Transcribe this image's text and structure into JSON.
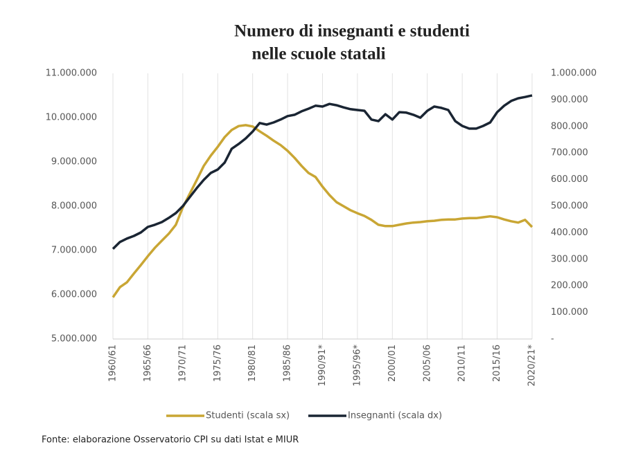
{
  "chart_data": {
    "type": "line",
    "title": [
      "Numero di insegnanti e studenti",
      "nelle scuole statali"
    ],
    "source": "Fonte: elaborazione Osservatorio CPI su dati Istat e MIUR",
    "categories": [
      "1960/61",
      null,
      null,
      null,
      null,
      "1965/66",
      null,
      null,
      null,
      null,
      "1970/71",
      null,
      null,
      null,
      null,
      "1975/76",
      null,
      null,
      null,
      null,
      "1980/81",
      null,
      null,
      null,
      null,
      "1985/86",
      null,
      null,
      null,
      null,
      "1990/91*",
      null,
      null,
      null,
      null,
      "1995/96*",
      null,
      null,
      null,
      null,
      "2000/01",
      null,
      null,
      null,
      null,
      "2005/06",
      null,
      null,
      null,
      null,
      "2010/11",
      null,
      null,
      null,
      null,
      "2015/16",
      null,
      null,
      null,
      null,
      "2020/21*"
    ],
    "series": [
      {
        "name": "Studenti (scala sx)",
        "color": "#c9a634",
        "axis": "y",
        "values": [
          5940000,
          6170000,
          6280000,
          6480000,
          6670000,
          6870000,
          7060000,
          7220000,
          7380000,
          7580000,
          7970000,
          8280000,
          8590000,
          8910000,
          9140000,
          9340000,
          9560000,
          9720000,
          9810000,
          9830000,
          9800000,
          9690000,
          9590000,
          9480000,
          9380000,
          9250000,
          9090000,
          8910000,
          8750000,
          8660000,
          8440000,
          8250000,
          8090000,
          8000000,
          7910000,
          7840000,
          7780000,
          7690000,
          7580000,
          7550000,
          7550000,
          7580000,
          7610000,
          7630000,
          7640000,
          7660000,
          7670000,
          7690000,
          7700000,
          7700000,
          7720000,
          7730000,
          7730000,
          7750000,
          7770000,
          7750000,
          7700000,
          7660000,
          7630000,
          7690000,
          7530000
        ]
      },
      {
        "name": "Insegnanti (scala dx)",
        "color": "#1a2533",
        "axis": "y2",
        "values": [
          339000,
          365000,
          378000,
          388000,
          401000,
          422000,
          430000,
          440000,
          456000,
          474000,
          500000,
          534000,
          568000,
          599000,
          625000,
          638000,
          664000,
          716000,
          734000,
          755000,
          781000,
          813000,
          807000,
          815000,
          826000,
          839000,
          844000,
          857000,
          867000,
          878000,
          875000,
          885000,
          880000,
          872000,
          865000,
          862000,
          859000,
          826000,
          820000,
          846000,
          826000,
          854000,
          852000,
          844000,
          833000,
          859000,
          875000,
          870000,
          862000,
          820000,
          802000,
          792000,
          792000,
          802000,
          815000,
          854000,
          878000,
          896000,
          906000,
          911000,
          917000
        ]
      }
    ],
    "ylim": [
      5000000,
      11000000
    ],
    "yticks": [
      {
        "value": 5000000,
        "label": "5.000.000"
      },
      {
        "value": 6000000,
        "label": "6.000.000"
      },
      {
        "value": 7000000,
        "label": "7.000.000"
      },
      {
        "value": 8000000,
        "label": "8.000.000"
      },
      {
        "value": 9000000,
        "label": "9.000.000"
      },
      {
        "value": 10000000,
        "label": "10.000.000"
      },
      {
        "value": 11000000,
        "label": "11.000.000"
      }
    ],
    "y2lim": [
      0,
      1000000
    ],
    "y2ticks": [
      {
        "value": 0,
        "label": "-"
      },
      {
        "value": 100000,
        "label": "100.000"
      },
      {
        "value": 200000,
        "label": "200.000"
      },
      {
        "value": 300000,
        "label": "300.000"
      },
      {
        "value": 400000,
        "label": "400.000"
      },
      {
        "value": 500000,
        "label": "500.000"
      },
      {
        "value": 600000,
        "label": "600.000"
      },
      {
        "value": 700000,
        "label": "700.000"
      },
      {
        "value": 800000,
        "label": "800.000"
      },
      {
        "value": 900000,
        "label": "900.000"
      },
      {
        "value": 1000000,
        "label": "1.000.000"
      }
    ],
    "grid": true
  }
}
